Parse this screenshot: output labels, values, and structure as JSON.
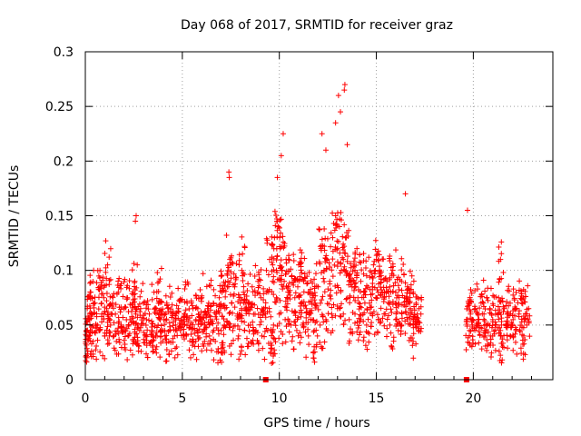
{
  "chart_data": {
    "type": "scatter",
    "title": "Day 068 of 2017, SRMTID for receiver graz",
    "xlabel": "GPS time / hours",
    "ylabel": "SRMTID / TECUs",
    "xlim": [
      0,
      24.1
    ],
    "ylim": [
      0,
      0.3
    ],
    "xticks": [
      0,
      5,
      10,
      15,
      20
    ],
    "xtick_labels": [
      "0",
      "5",
      "10",
      "15",
      "20"
    ],
    "yticks": [
      0,
      0.05,
      0.1,
      0.15,
      0.2,
      0.25,
      0.3
    ],
    "ytick_labels": [
      "0",
      "0.05",
      "0.1",
      "0.15",
      "0.2",
      "0.25",
      "0.3"
    ],
    "grid": true,
    "marker": "+",
    "color": "#ff0000",
    "series": [
      {
        "name": "SRMTID",
        "x": [
          0.05,
          0.1,
          0.18,
          0.28,
          0.35,
          0.5,
          0.62,
          0.75,
          0.85,
          0.95,
          1.1,
          1.25,
          1.4,
          1.55,
          1.7,
          1.85,
          2.0,
          2.15,
          2.3,
          2.45,
          2.55,
          2.6,
          2.7,
          2.85,
          3.0,
          3.15,
          3.3,
          3.45,
          3.6,
          3.75,
          3.9,
          4.05,
          4.2,
          4.35,
          4.5,
          4.65,
          4.8,
          4.95,
          5.1,
          5.25,
          5.4,
          5.55,
          5.7,
          5.85,
          6.0,
          6.15,
          6.3,
          6.45,
          6.6,
          6.75,
          6.9,
          7.05,
          7.2,
          7.35,
          7.45,
          7.55,
          7.7,
          7.85,
          8.0,
          8.15,
          8.3,
          8.45,
          8.6,
          8.75,
          8.9,
          9.05,
          9.2,
          9.35,
          9.5,
          9.65,
          9.75,
          9.85,
          9.95,
          10.05,
          10.15,
          10.25,
          10.35,
          10.5,
          10.65,
          10.8,
          10.95,
          11.1,
          11.25,
          11.4,
          11.55,
          11.7,
          11.85,
          12.0,
          12.15,
          12.3,
          12.45,
          12.6,
          12.75,
          12.9,
          13.0,
          13.1,
          13.2,
          13.3,
          13.45,
          13.6,
          13.75,
          13.9,
          14.05,
          14.2,
          14.35,
          14.5,
          14.65,
          14.8,
          14.95,
          15.1,
          15.25,
          15.4,
          15.55,
          15.7,
          15.85,
          16.0,
          16.15,
          16.3,
          16.45,
          16.6,
          16.75,
          16.9,
          17.05,
          17.2,
          17.3,
          19.65,
          19.75,
          19.85,
          19.95,
          20.1,
          20.25,
          20.4,
          20.55,
          20.7,
          20.85,
          21.0,
          21.15,
          21.3,
          21.45,
          21.6,
          21.75,
          21.9,
          22.05,
          22.2,
          22.35,
          22.5,
          22.65,
          22.75,
          22.85,
          0.2,
          0.4,
          0.7,
          1.0,
          1.3,
          1.6,
          1.9,
          2.2,
          2.5,
          2.8,
          3.1,
          3.4,
          3.7,
          4.0,
          4.3,
          4.6,
          4.9,
          5.2,
          5.5,
          5.8,
          6.1,
          6.4,
          6.7,
          7.0,
          7.3,
          7.6,
          7.9,
          8.2,
          8.5,
          8.8,
          9.1,
          9.4,
          9.7,
          10.0,
          10.3,
          10.6,
          10.9,
          11.2,
          11.5,
          11.8,
          12.1,
          12.4,
          12.7,
          13.0,
          13.3,
          13.6,
          13.9,
          14.2,
          14.5,
          14.8,
          15.1,
          15.4,
          15.7,
          16.0,
          16.3,
          16.6,
          16.9,
          17.2,
          19.8,
          20.2,
          20.6,
          21.0,
          21.4,
          21.8,
          22.2,
          22.6,
          2.58,
          2.62,
          7.4,
          7.42,
          9.9,
          10.1,
          10.2,
          12.2,
          12.4,
          12.9,
          13.05,
          13.15,
          13.35,
          13.38,
          13.5,
          16.5,
          19.7,
          21.4,
          1.15,
          3.8,
          8.1,
          11.0,
          14.0,
          15.0,
          0.08,
          6.95,
          9.6,
          11.9,
          16.9,
          21.5
        ],
        "y": [
          0.045,
          0.065,
          0.055,
          0.08,
          0.06,
          0.07,
          0.05,
          0.085,
          0.06,
          0.075,
          0.065,
          0.055,
          0.07,
          0.06,
          0.08,
          0.05,
          0.065,
          0.075,
          0.055,
          0.07,
          0.09,
          0.06,
          0.05,
          0.065,
          0.07,
          0.055,
          0.06,
          0.045,
          0.065,
          0.05,
          0.06,
          0.055,
          0.07,
          0.045,
          0.06,
          0.05,
          0.065,
          0.055,
          0.06,
          0.07,
          0.05,
          0.065,
          0.055,
          0.06,
          0.075,
          0.05,
          0.065,
          0.055,
          0.07,
          0.06,
          0.075,
          0.08,
          0.065,
          0.09,
          0.11,
          0.07,
          0.085,
          0.06,
          0.075,
          0.08,
          0.065,
          0.07,
          0.085,
          0.06,
          0.09,
          0.075,
          0.065,
          0.08,
          0.11,
          0.09,
          0.13,
          0.1,
          0.14,
          0.12,
          0.1,
          0.09,
          0.11,
          0.08,
          0.095,
          0.075,
          0.085,
          0.07,
          0.09,
          0.065,
          0.08,
          0.075,
          0.07,
          0.085,
          0.12,
          0.1,
          0.11,
          0.09,
          0.13,
          0.15,
          0.12,
          0.14,
          0.1,
          0.11,
          0.13,
          0.09,
          0.085,
          0.1,
          0.075,
          0.09,
          0.08,
          0.095,
          0.07,
          0.085,
          0.1,
          0.08,
          0.095,
          0.075,
          0.09,
          0.085,
          0.1,
          0.08,
          0.07,
          0.09,
          0.075,
          0.085,
          0.065,
          0.08,
          0.07,
          0.065,
          0.06,
          0.055,
          0.07,
          0.06,
          0.05,
          0.065,
          0.055,
          0.07,
          0.06,
          0.05,
          0.065,
          0.055,
          0.06,
          0.075,
          0.05,
          0.065,
          0.06,
          0.07,
          0.055,
          0.065,
          0.06,
          0.07,
          0.055,
          0.06,
          0.065,
          0.04,
          0.035,
          0.045,
          0.04,
          0.05,
          0.035,
          0.045,
          0.04,
          0.035,
          0.045,
          0.04,
          0.035,
          0.04,
          0.045,
          0.035,
          0.04,
          0.045,
          0.04,
          0.035,
          0.04,
          0.045,
          0.04,
          0.035,
          0.045,
          0.05,
          0.045,
          0.04,
          0.045,
          0.05,
          0.045,
          0.04,
          0.045,
          0.05,
          0.06,
          0.055,
          0.05,
          0.045,
          0.05,
          0.04,
          0.045,
          0.05,
          0.055,
          0.06,
          0.065,
          0.06,
          0.055,
          0.06,
          0.055,
          0.05,
          0.06,
          0.055,
          0.06,
          0.05,
          0.055,
          0.05,
          0.055,
          0.05,
          0.045,
          0.045,
          0.05,
          0.045,
          0.04,
          0.045,
          0.05,
          0.045,
          0.04,
          0.145,
          0.15,
          0.19,
          0.185,
          0.185,
          0.205,
          0.225,
          0.225,
          0.21,
          0.235,
          0.26,
          0.245,
          0.265,
          0.27,
          0.215,
          0.17,
          0.155,
          0.11,
          0.105,
          0.09,
          0.115,
          0.105,
          0.12,
          0.11,
          0.02,
          0.018,
          0.015,
          0.03,
          0.035,
          0.03
        ]
      }
    ],
    "gap_markers_x": [
      9.3,
      19.65
    ]
  }
}
